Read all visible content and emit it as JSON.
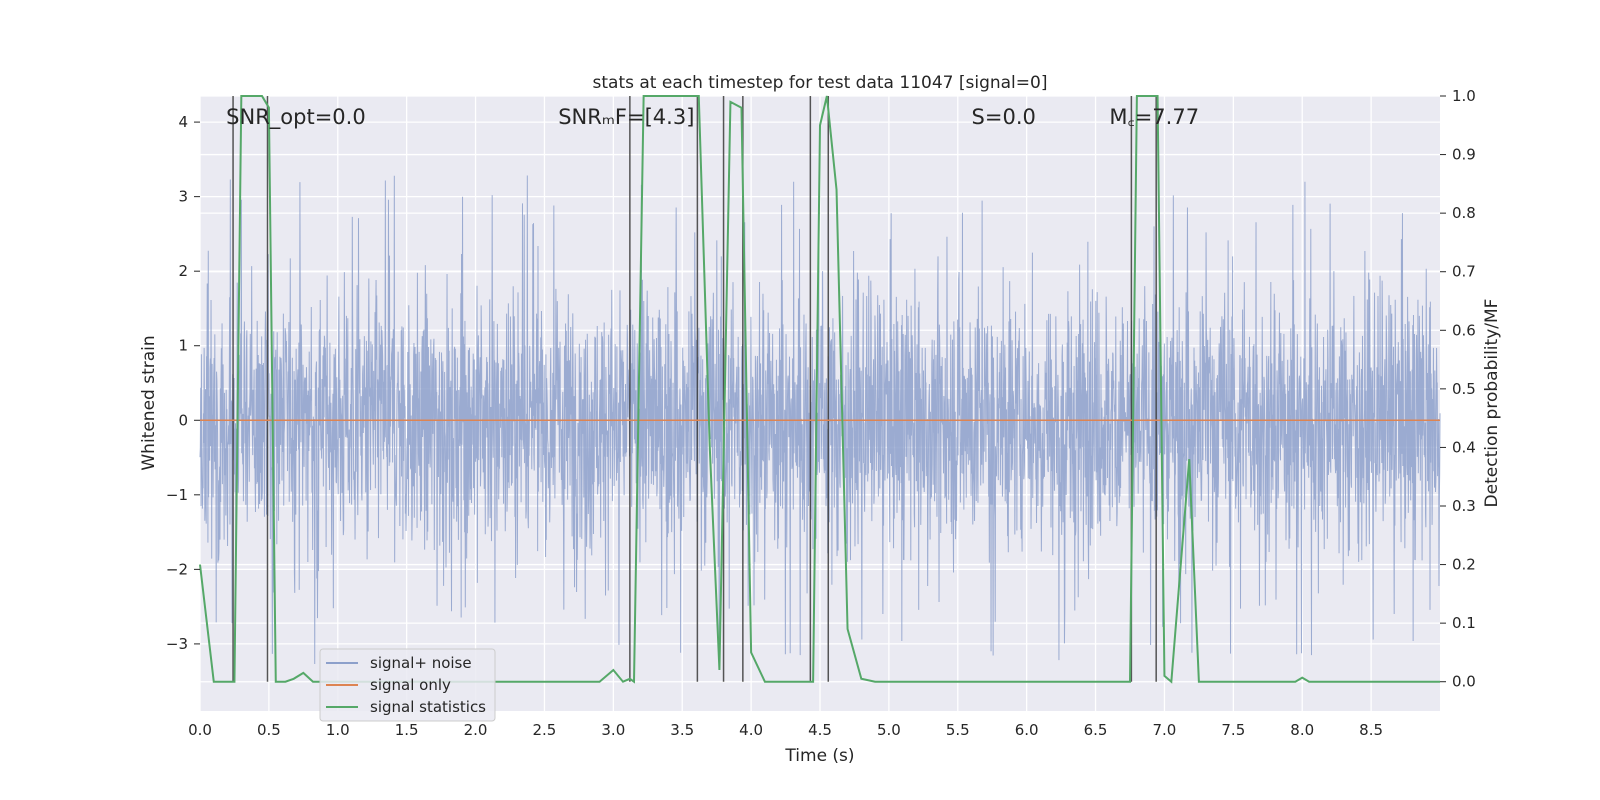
{
  "chart_data": {
    "type": "line",
    "title": "stats at each timestep for test data 11047 [signal=0]",
    "xlabel": "Time (s)",
    "ylabel_left": "Whitened strain",
    "ylabel_right": "Detection probability/MF",
    "xlim": [
      0,
      9.0
    ],
    "ylim_left": [
      -3.9,
      4.35
    ],
    "ylim_right": [
      -0.05,
      1.0
    ],
    "x_ticks": [
      0.0,
      0.5,
      1.0,
      1.5,
      2.0,
      2.5,
      3.0,
      3.5,
      4.0,
      4.5,
      5.0,
      5.5,
      6.0,
      6.5,
      7.0,
      7.5,
      8.0,
      8.5
    ],
    "x_tick_labels": [
      "0.0",
      "0.5",
      "1.0",
      "1.5",
      "2.0",
      "2.5",
      "3.0",
      "3.5",
      "4.0",
      "4.5",
      "5.0",
      "5.5",
      "6.0",
      "6.5",
      "7.0",
      "7.5",
      "8.0",
      "8.5"
    ],
    "y_left_ticks": [
      -3,
      -2,
      -1,
      0,
      1,
      2,
      3,
      4
    ],
    "y_left_tick_labels": [
      "−3",
      "−2",
      "−1",
      "0",
      "1",
      "2",
      "3",
      "4"
    ],
    "y_right_ticks": [
      0.0,
      0.1,
      0.2,
      0.3,
      0.4,
      0.5,
      0.6,
      0.7,
      0.8,
      0.9,
      1.0
    ],
    "y_right_tick_labels": [
      "0.0",
      "0.1",
      "0.2",
      "0.3",
      "0.4",
      "0.5",
      "0.6",
      "0.7",
      "0.8",
      "0.9",
      "1.0"
    ],
    "grid": true,
    "legend_position": "bottom-left",
    "annotations": [
      {
        "text": "SNR_opt=0.0",
        "x": 0.19
      },
      {
        "text": "SNRₘF=[4.3]",
        "x": 2.6
      },
      {
        "text": "S=0.0",
        "x": 5.6
      },
      {
        "text": "M꜀=7.77",
        "x": 6.6
      }
    ],
    "series": [
      {
        "name": "signal+ noise",
        "color": "#8da0cb",
        "kind": "noise",
        "amplitude_typical": 1.2,
        "peak_max": 3.45,
        "trough_min": -3.55
      },
      {
        "name": "signal only",
        "color": "#dd8452",
        "values_constant": 0.0
      },
      {
        "name": "signal statistics",
        "color": "#55a868",
        "axis": "right",
        "x": [
          0.0,
          0.05,
          0.1,
          0.25,
          0.3,
          0.45,
          0.5,
          0.55,
          0.62,
          0.68,
          0.75,
          0.82,
          2.9,
          3.0,
          3.07,
          3.12,
          3.15,
          3.22,
          3.62,
          3.7,
          3.77,
          3.85,
          3.93,
          4.0,
          4.1,
          4.45,
          4.5,
          4.55,
          4.62,
          4.7,
          4.8,
          4.9,
          6.75,
          6.8,
          6.95,
          7.0,
          7.05,
          7.18,
          7.25,
          7.95,
          8.0,
          8.05,
          9.0
        ],
        "y": [
          0.2,
          0.1,
          0.0,
          0.0,
          1.0,
          1.0,
          0.98,
          0.0,
          0.0,
          0.005,
          0.015,
          0.0,
          0.0,
          0.02,
          0.0,
          0.005,
          0.0,
          1.0,
          1.0,
          0.4,
          0.02,
          0.99,
          0.98,
          0.05,
          0.0,
          0.0,
          0.95,
          1.0,
          0.84,
          0.09,
          0.005,
          0.0,
          0.0,
          1.0,
          1.0,
          0.01,
          0.0,
          0.38,
          0.0,
          0.0,
          0.007,
          0.0,
          0.0
        ]
      }
    ],
    "vertical_markers": [
      0.24,
      0.49,
      3.12,
      3.61,
      3.8,
      3.94,
      4.43,
      4.56,
      6.76,
      6.94
    ]
  }
}
